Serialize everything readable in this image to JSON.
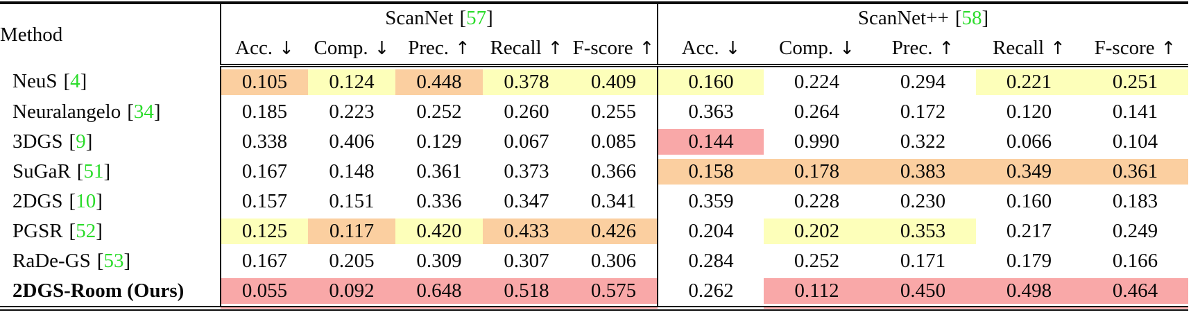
{
  "table": {
    "method_header": "Method",
    "citation_color": "#2bdc2b",
    "groups": [
      {
        "name": "ScanNet",
        "citation": "57"
      },
      {
        "name": "ScanNet++",
        "citation": "58"
      }
    ],
    "metric_headers": [
      {
        "label": "Acc.",
        "arrow": "↓"
      },
      {
        "label": "Comp.",
        "arrow": "↓"
      },
      {
        "label": "Prec.",
        "arrow": "↑"
      },
      {
        "label": "Recall",
        "arrow": "↑"
      },
      {
        "label": "F-score",
        "arrow": "↑"
      }
    ],
    "highlight_colors": {
      "best": "#f9a8a8",
      "second": "#fbcfa0",
      "third": "#fdffba"
    },
    "rows": [
      {
        "method": "NeuS",
        "citation": "4",
        "bold": false,
        "scannet": [
          {
            "v": "0.105",
            "h": "second"
          },
          {
            "v": "0.124",
            "h": "third"
          },
          {
            "v": "0.448",
            "h": "second"
          },
          {
            "v": "0.378",
            "h": "third"
          },
          {
            "v": "0.409",
            "h": "third"
          }
        ],
        "scannetpp": [
          {
            "v": "0.160",
            "h": "third"
          },
          {
            "v": "0.224",
            "h": ""
          },
          {
            "v": "0.294",
            "h": ""
          },
          {
            "v": "0.221",
            "h": "third"
          },
          {
            "v": "0.251",
            "h": "third"
          }
        ]
      },
      {
        "method": "Neuralangelo",
        "citation": "34",
        "bold": false,
        "scannet": [
          {
            "v": "0.185",
            "h": ""
          },
          {
            "v": "0.223",
            "h": ""
          },
          {
            "v": "0.252",
            "h": ""
          },
          {
            "v": "0.260",
            "h": ""
          },
          {
            "v": "0.255",
            "h": ""
          }
        ],
        "scannetpp": [
          {
            "v": "0.363",
            "h": ""
          },
          {
            "v": "0.264",
            "h": ""
          },
          {
            "v": "0.172",
            "h": ""
          },
          {
            "v": "0.120",
            "h": ""
          },
          {
            "v": "0.141",
            "h": ""
          }
        ]
      },
      {
        "method": "3DGS",
        "citation": "9",
        "bold": false,
        "scannet": [
          {
            "v": "0.338",
            "h": ""
          },
          {
            "v": "0.406",
            "h": ""
          },
          {
            "v": "0.129",
            "h": ""
          },
          {
            "v": "0.067",
            "h": ""
          },
          {
            "v": "0.085",
            "h": ""
          }
        ],
        "scannetpp": [
          {
            "v": "0.144",
            "h": "best"
          },
          {
            "v": "0.990",
            "h": ""
          },
          {
            "v": "0.322",
            "h": ""
          },
          {
            "v": "0.066",
            "h": ""
          },
          {
            "v": "0.104",
            "h": ""
          }
        ]
      },
      {
        "method": "SuGaR",
        "citation": "51",
        "bold": false,
        "scannet": [
          {
            "v": "0.167",
            "h": ""
          },
          {
            "v": "0.148",
            "h": ""
          },
          {
            "v": "0.361",
            "h": ""
          },
          {
            "v": "0.373",
            "h": ""
          },
          {
            "v": "0.366",
            "h": ""
          }
        ],
        "scannetpp": [
          {
            "v": "0.158",
            "h": "second"
          },
          {
            "v": "0.178",
            "h": "second"
          },
          {
            "v": "0.383",
            "h": "second"
          },
          {
            "v": "0.349",
            "h": "second"
          },
          {
            "v": "0.361",
            "h": "second"
          }
        ]
      },
      {
        "method": "2DGS",
        "citation": "10",
        "bold": false,
        "scannet": [
          {
            "v": "0.157",
            "h": ""
          },
          {
            "v": "0.151",
            "h": ""
          },
          {
            "v": "0.336",
            "h": ""
          },
          {
            "v": "0.347",
            "h": ""
          },
          {
            "v": "0.341",
            "h": ""
          }
        ],
        "scannetpp": [
          {
            "v": "0.359",
            "h": ""
          },
          {
            "v": "0.228",
            "h": ""
          },
          {
            "v": "0.230",
            "h": ""
          },
          {
            "v": "0.160",
            "h": ""
          },
          {
            "v": "0.183",
            "h": ""
          }
        ]
      },
      {
        "method": "PGSR",
        "citation": "52",
        "bold": false,
        "scannet": [
          {
            "v": "0.125",
            "h": "third"
          },
          {
            "v": "0.117",
            "h": "second"
          },
          {
            "v": "0.420",
            "h": "third"
          },
          {
            "v": "0.433",
            "h": "second"
          },
          {
            "v": "0.426",
            "h": "second"
          }
        ],
        "scannetpp": [
          {
            "v": "0.204",
            "h": ""
          },
          {
            "v": "0.202",
            "h": "third"
          },
          {
            "v": "0.353",
            "h": "third"
          },
          {
            "v": "0.217",
            "h": ""
          },
          {
            "v": "0.249",
            "h": ""
          }
        ]
      },
      {
        "method": "RaDe-GS",
        "citation": "53",
        "bold": false,
        "scannet": [
          {
            "v": "0.167",
            "h": ""
          },
          {
            "v": "0.205",
            "h": ""
          },
          {
            "v": "0.309",
            "h": ""
          },
          {
            "v": "0.307",
            "h": ""
          },
          {
            "v": "0.306",
            "h": ""
          }
        ],
        "scannetpp": [
          {
            "v": "0.284",
            "h": ""
          },
          {
            "v": "0.252",
            "h": ""
          },
          {
            "v": "0.171",
            "h": ""
          },
          {
            "v": "0.179",
            "h": ""
          },
          {
            "v": "0.166",
            "h": ""
          }
        ]
      },
      {
        "method": "2DGS-Room (Ours)",
        "citation": "",
        "bold": true,
        "scannet": [
          {
            "v": "0.055",
            "h": "best"
          },
          {
            "v": "0.092",
            "h": "best"
          },
          {
            "v": "0.648",
            "h": "best"
          },
          {
            "v": "0.518",
            "h": "best"
          },
          {
            "v": "0.575",
            "h": "best"
          }
        ],
        "scannetpp": [
          {
            "v": "0.262",
            "h": ""
          },
          {
            "v": "0.112",
            "h": "best"
          },
          {
            "v": "0.450",
            "h": "best"
          },
          {
            "v": "0.498",
            "h": "best"
          },
          {
            "v": "0.464",
            "h": "best"
          }
        ]
      }
    ]
  }
}
